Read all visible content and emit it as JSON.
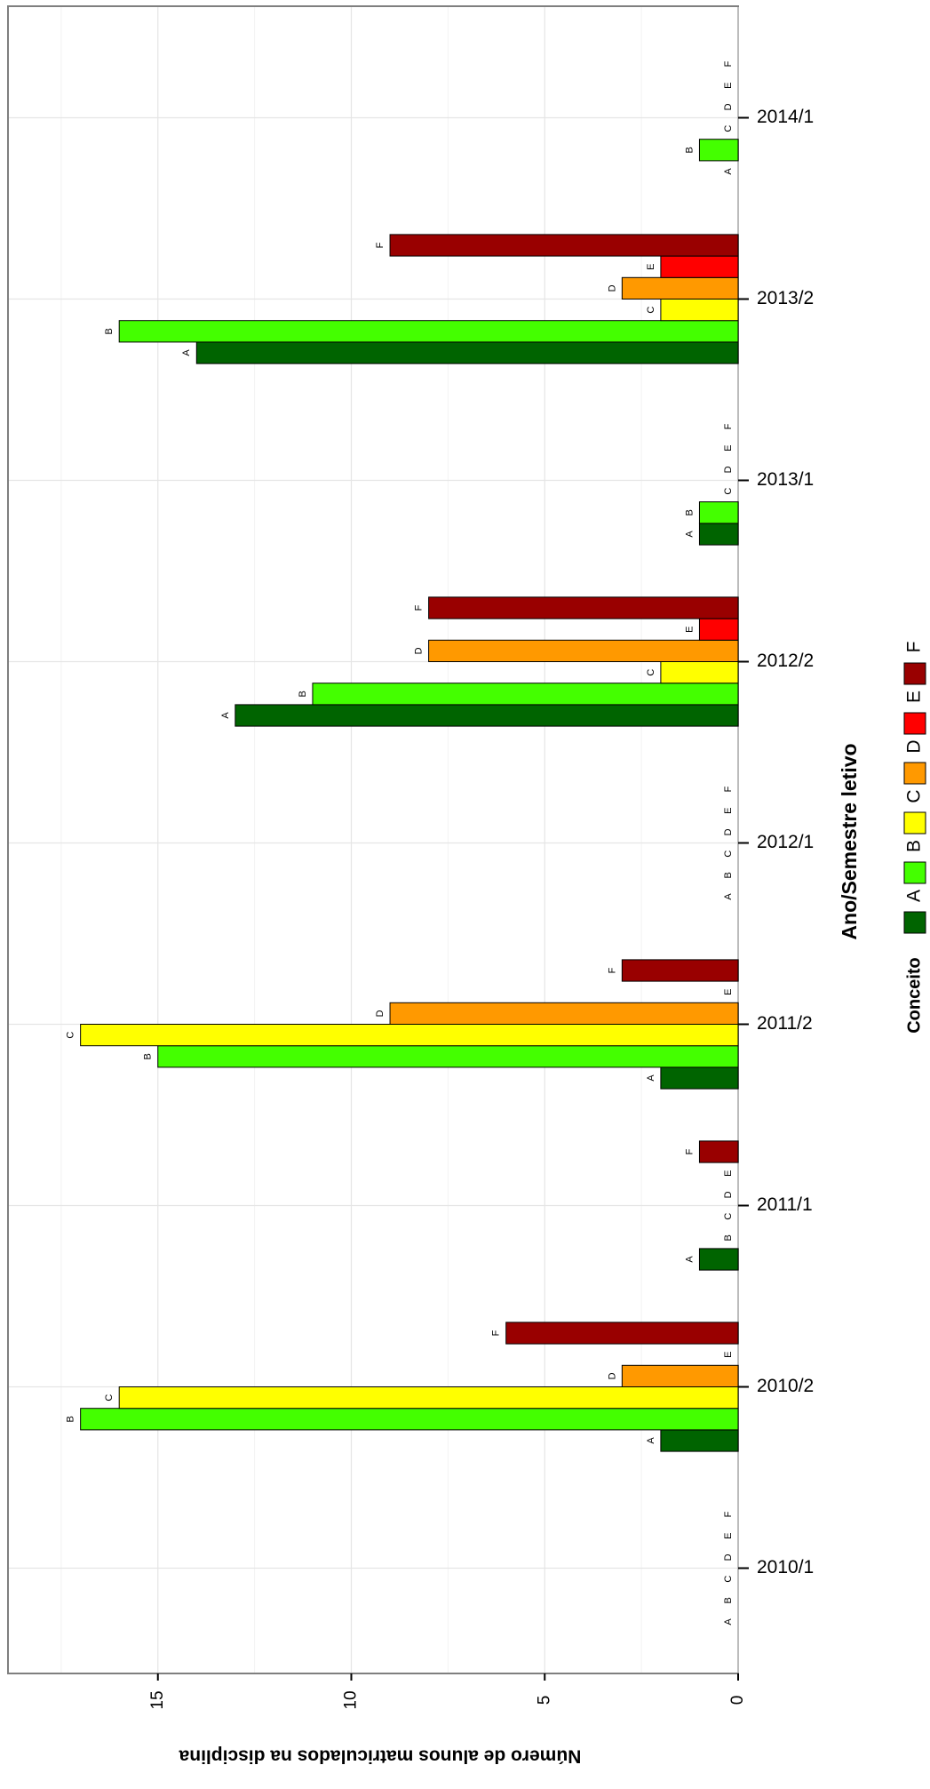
{
  "chart_data": {
    "type": "bar",
    "orientation": "rotated-90-clockwise",
    "ylabel": "Número de alunos matriculados na disciplina",
    "xlabel": "Ano/Semestre letivo",
    "ylim": [
      0,
      18.9
    ],
    "yticks": [
      0,
      5,
      10,
      15
    ],
    "grid": true,
    "legend_position": "bottom",
    "legend_title": "Conceito",
    "categories": [
      "2010/1",
      "2010/2",
      "2011/1",
      "2011/2",
      "2012/1",
      "2012/2",
      "2013/1",
      "2013/2",
      "2014/1"
    ],
    "series": [
      {
        "name": "A",
        "color": "#006400",
        "values": [
          0,
          2,
          1,
          2,
          0,
          13,
          1,
          14,
          0
        ]
      },
      {
        "name": "B",
        "color": "#44ff00",
        "values": [
          0,
          17,
          0,
          15,
          0,
          11,
          1,
          16,
          1
        ]
      },
      {
        "name": "C",
        "color": "#ffff00",
        "values": [
          0,
          16,
          0,
          17,
          0,
          2,
          0,
          2,
          0
        ]
      },
      {
        "name": "D",
        "color": "#ff9900",
        "values": [
          0,
          3,
          0,
          9,
          0,
          8,
          0,
          3,
          0
        ]
      },
      {
        "name": "E",
        "color": "#ff0000",
        "values": [
          0,
          0,
          0,
          0,
          0,
          1,
          0,
          2,
          0
        ]
      },
      {
        "name": "F",
        "color": "#990000",
        "values": [
          0,
          6,
          1,
          3,
          0,
          8,
          0,
          9,
          0
        ]
      }
    ]
  }
}
